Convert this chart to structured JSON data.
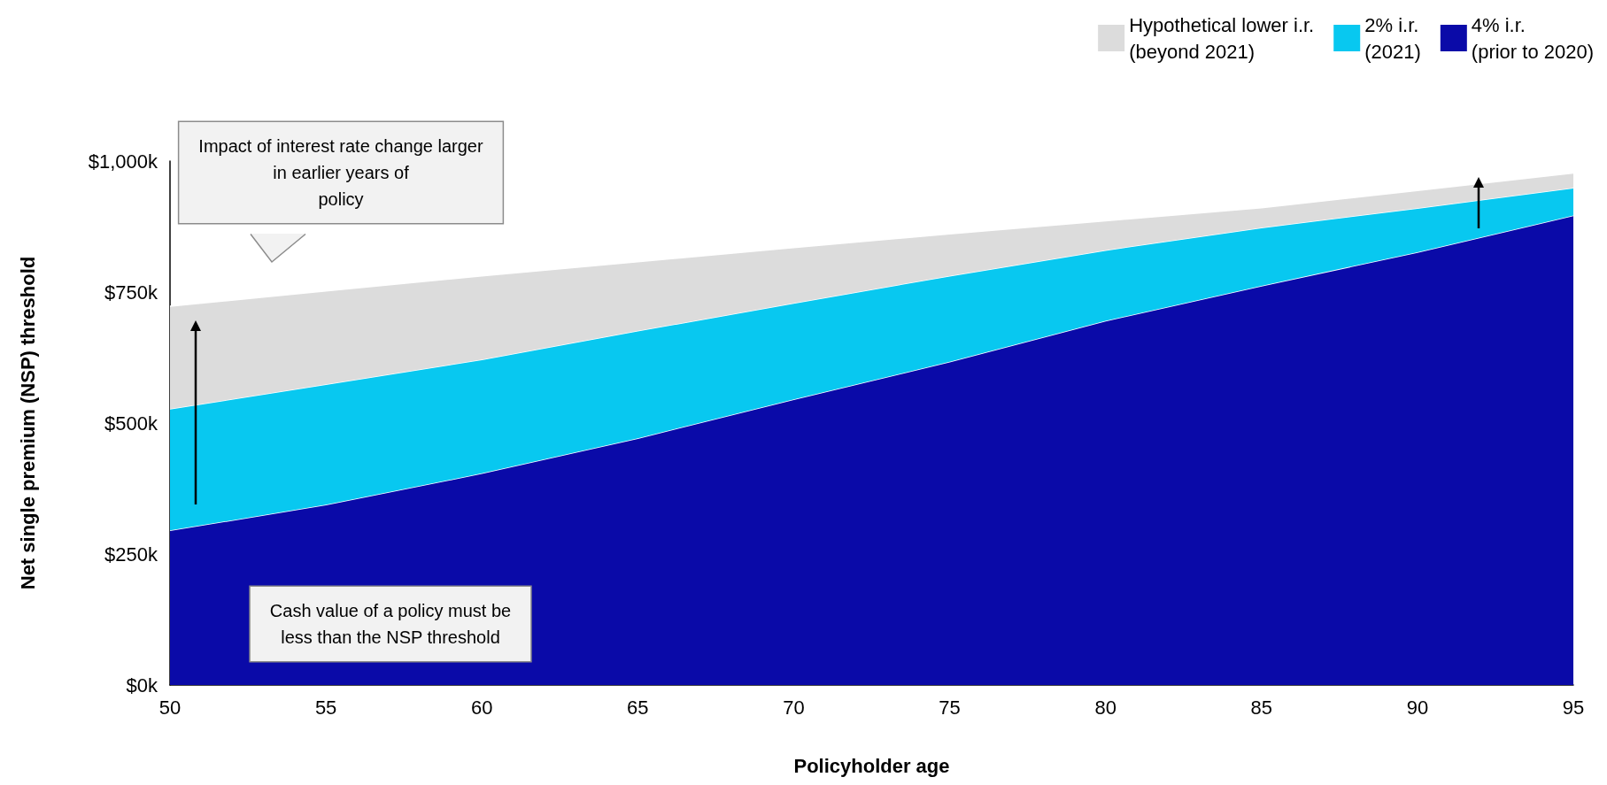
{
  "chart_data": {
    "type": "area",
    "stacked": true,
    "xlabel": "Policyholder age",
    "ylabel": "Net single premium (NSP) threshold",
    "x": [
      50,
      55,
      60,
      65,
      70,
      75,
      80,
      85,
      90,
      95
    ],
    "series": [
      {
        "name": "4% i.r.\n(prior to 2020)",
        "color": "#0a0aa8",
        "values": [
          295,
          344,
          404,
          471,
          545,
          617,
          695,
          762,
          826,
          896
        ]
      },
      {
        "name": "2% i.r.\n(2021)",
        "color": "#08c8f0",
        "values": [
          232,
          230,
          217,
          205,
          184,
          164,
          135,
          111,
          84,
          53
        ]
      },
      {
        "name": "Hypothetical lower i.r.\n(beyond 2021)",
        "color": "#dcdcdc",
        "values": [
          196,
          178,
          160,
          132,
          106,
          80,
          56,
          38,
          34,
          28
        ]
      }
    ],
    "xlim": [
      50,
      95
    ],
    "xticks": [
      50,
      55,
      60,
      65,
      70,
      75,
      80,
      85,
      90,
      95
    ],
    "ylim": [
      0,
      1000
    ],
    "yticks": [
      {
        "value": 0,
        "label": "$0k"
      },
      {
        "value": 250,
        "label": "$250k"
      },
      {
        "value": 500,
        "label": "$500k"
      },
      {
        "value": 750,
        "label": "$750k"
      },
      {
        "value": 1000,
        "label": "$1,000k"
      }
    ],
    "grid": false,
    "legend": "top right",
    "annotations": [
      "Impact of interest rate change larger\nin earlier years of\npolicy",
      "Cash value of a policy must be\nless than the NSP threshold"
    ]
  }
}
